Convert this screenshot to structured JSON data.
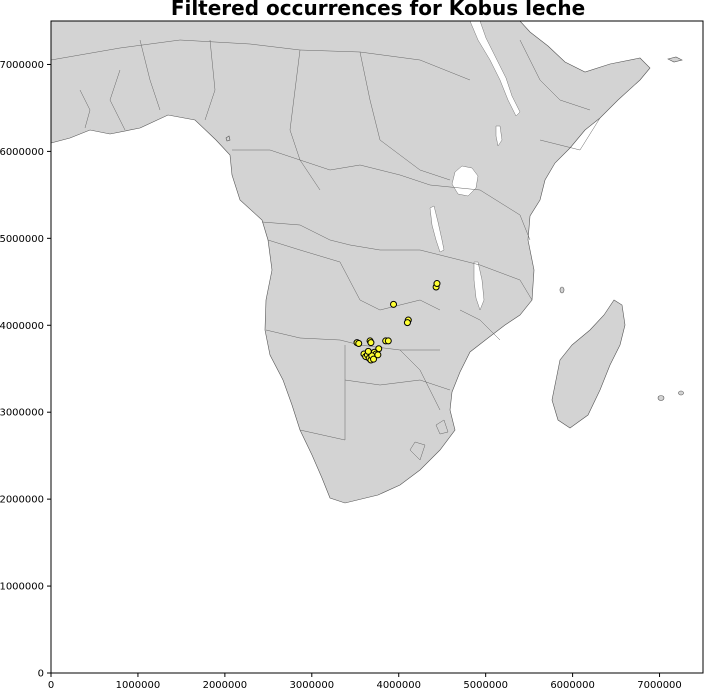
{
  "chart_data": {
    "type": "scatter",
    "title": "Filtered occurrences for Kobus leche",
    "xlabel": "",
    "ylabel": "",
    "xlim": [
      0,
      7500000
    ],
    "ylim": [
      0,
      7500000
    ],
    "x_ticks": [
      0,
      1000000,
      2000000,
      3000000,
      4000000,
      5000000,
      6000000,
      7000000
    ],
    "x_tick_labels": [
      "0",
      "1000000",
      "2000000",
      "3000000",
      "4000000",
      "5000000",
      "6000000",
      "7000000"
    ],
    "y_ticks": [
      0,
      1000000,
      2000000,
      3000000,
      4000000,
      5000000,
      6000000,
      7000000
    ],
    "y_tick_labels": [
      "0",
      "1000000",
      "2000000",
      "3000000",
      "4000000",
      "5000000",
      "6000000",
      "7000000"
    ],
    "grid": false,
    "colors": {
      "land": "#d3d3d3",
      "border": "#666666",
      "water": "#ffffff",
      "marker_fill": "#ffff33",
      "marker_edge": "#000000"
    },
    "series": [
      {
        "points": [
          [
            3940000,
            4240000
          ],
          [
            4430000,
            4440000
          ],
          [
            4440000,
            4480000
          ],
          [
            4110000,
            4060000
          ],
          [
            4100000,
            4030000
          ],
          [
            3520000,
            3800000
          ],
          [
            3540000,
            3790000
          ],
          [
            3670000,
            3820000
          ],
          [
            3680000,
            3800000
          ],
          [
            3850000,
            3820000
          ],
          [
            3880000,
            3820000
          ],
          [
            3770000,
            3730000
          ],
          [
            3600000,
            3670000
          ],
          [
            3620000,
            3640000
          ],
          [
            3640000,
            3660000
          ],
          [
            3660000,
            3620000
          ],
          [
            3680000,
            3600000
          ],
          [
            3700000,
            3640000
          ],
          [
            3720000,
            3690000
          ],
          [
            3740000,
            3670000
          ],
          [
            3760000,
            3660000
          ],
          [
            3690000,
            3650000
          ],
          [
            3710000,
            3610000
          ],
          [
            3650000,
            3700000
          ]
        ]
      }
    ]
  }
}
